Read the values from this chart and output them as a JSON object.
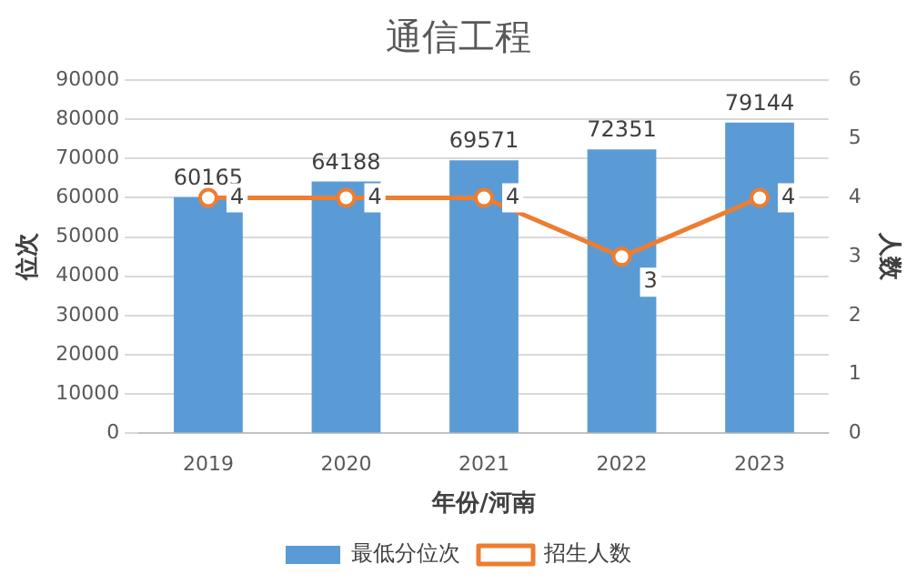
{
  "chart_data": {
    "type": "bar",
    "title": "通信工程",
    "xlabel": "年份/河南",
    "ylabel": "位次",
    "y2label": "人数",
    "categories": [
      "2019",
      "2020",
      "2021",
      "2022",
      "2023"
    ],
    "series": [
      {
        "name": "最低分位次",
        "color": "#5b9bd5",
        "values": [
          60165,
          64188,
          69571,
          72351,
          79144
        ]
      },
      {
        "name": "招生人数",
        "type": "line",
        "axis": "y2",
        "color": "#ed7d31",
        "values": [
          4,
          4,
          4,
          3,
          4
        ]
      }
    ],
    "ylim": [
      0,
      90000
    ],
    "yticks": [
      0,
      10000,
      20000,
      30000,
      40000,
      50000,
      60000,
      70000,
      80000,
      90000
    ],
    "y2lim": [
      0,
      6
    ],
    "y2ticks": [
      0,
      1,
      2,
      3,
      4,
      5,
      6
    ],
    "grid": "y",
    "legend": "bottom",
    "data_labels": true,
    "marker": "circle",
    "line_style": "solid"
  }
}
